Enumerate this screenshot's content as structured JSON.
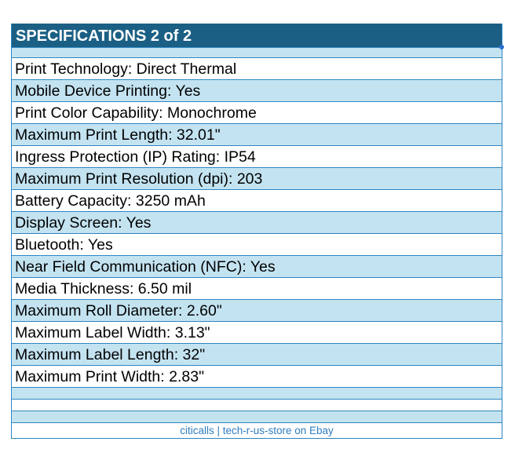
{
  "title": "SPECIFICATIONS 2 of 2",
  "specs": [
    "Print Technology: Direct Thermal",
    "Mobile Device Printing: Yes",
    "Print Color Capability: Monochrome",
    "Maximum Print Length: 32.01\"",
    "Ingress Protection (IP) Rating: IP54",
    "Maximum Print Resolution (dpi): 203",
    "Battery Capacity: 3250 mAh",
    "Display Screen: Yes",
    "Bluetooth: Yes",
    "Near Field Communication (NFC): Yes",
    "Media Thickness: 6.50 mil",
    "Maximum Roll Diameter: 2.60\"",
    "Maximum Label Width: 3.13\"",
    "Maximum Label Length: 32\"",
    "Maximum Print Width: 2.83\""
  ],
  "footer": "citicalls | tech-r-us-store on Ebay",
  "colors": {
    "header_bg": "#1b5f84",
    "row_light": "#c4e3f1",
    "row_white": "#ffffff",
    "border": "#2e86c1",
    "footer_text": "#2e7dbf"
  }
}
